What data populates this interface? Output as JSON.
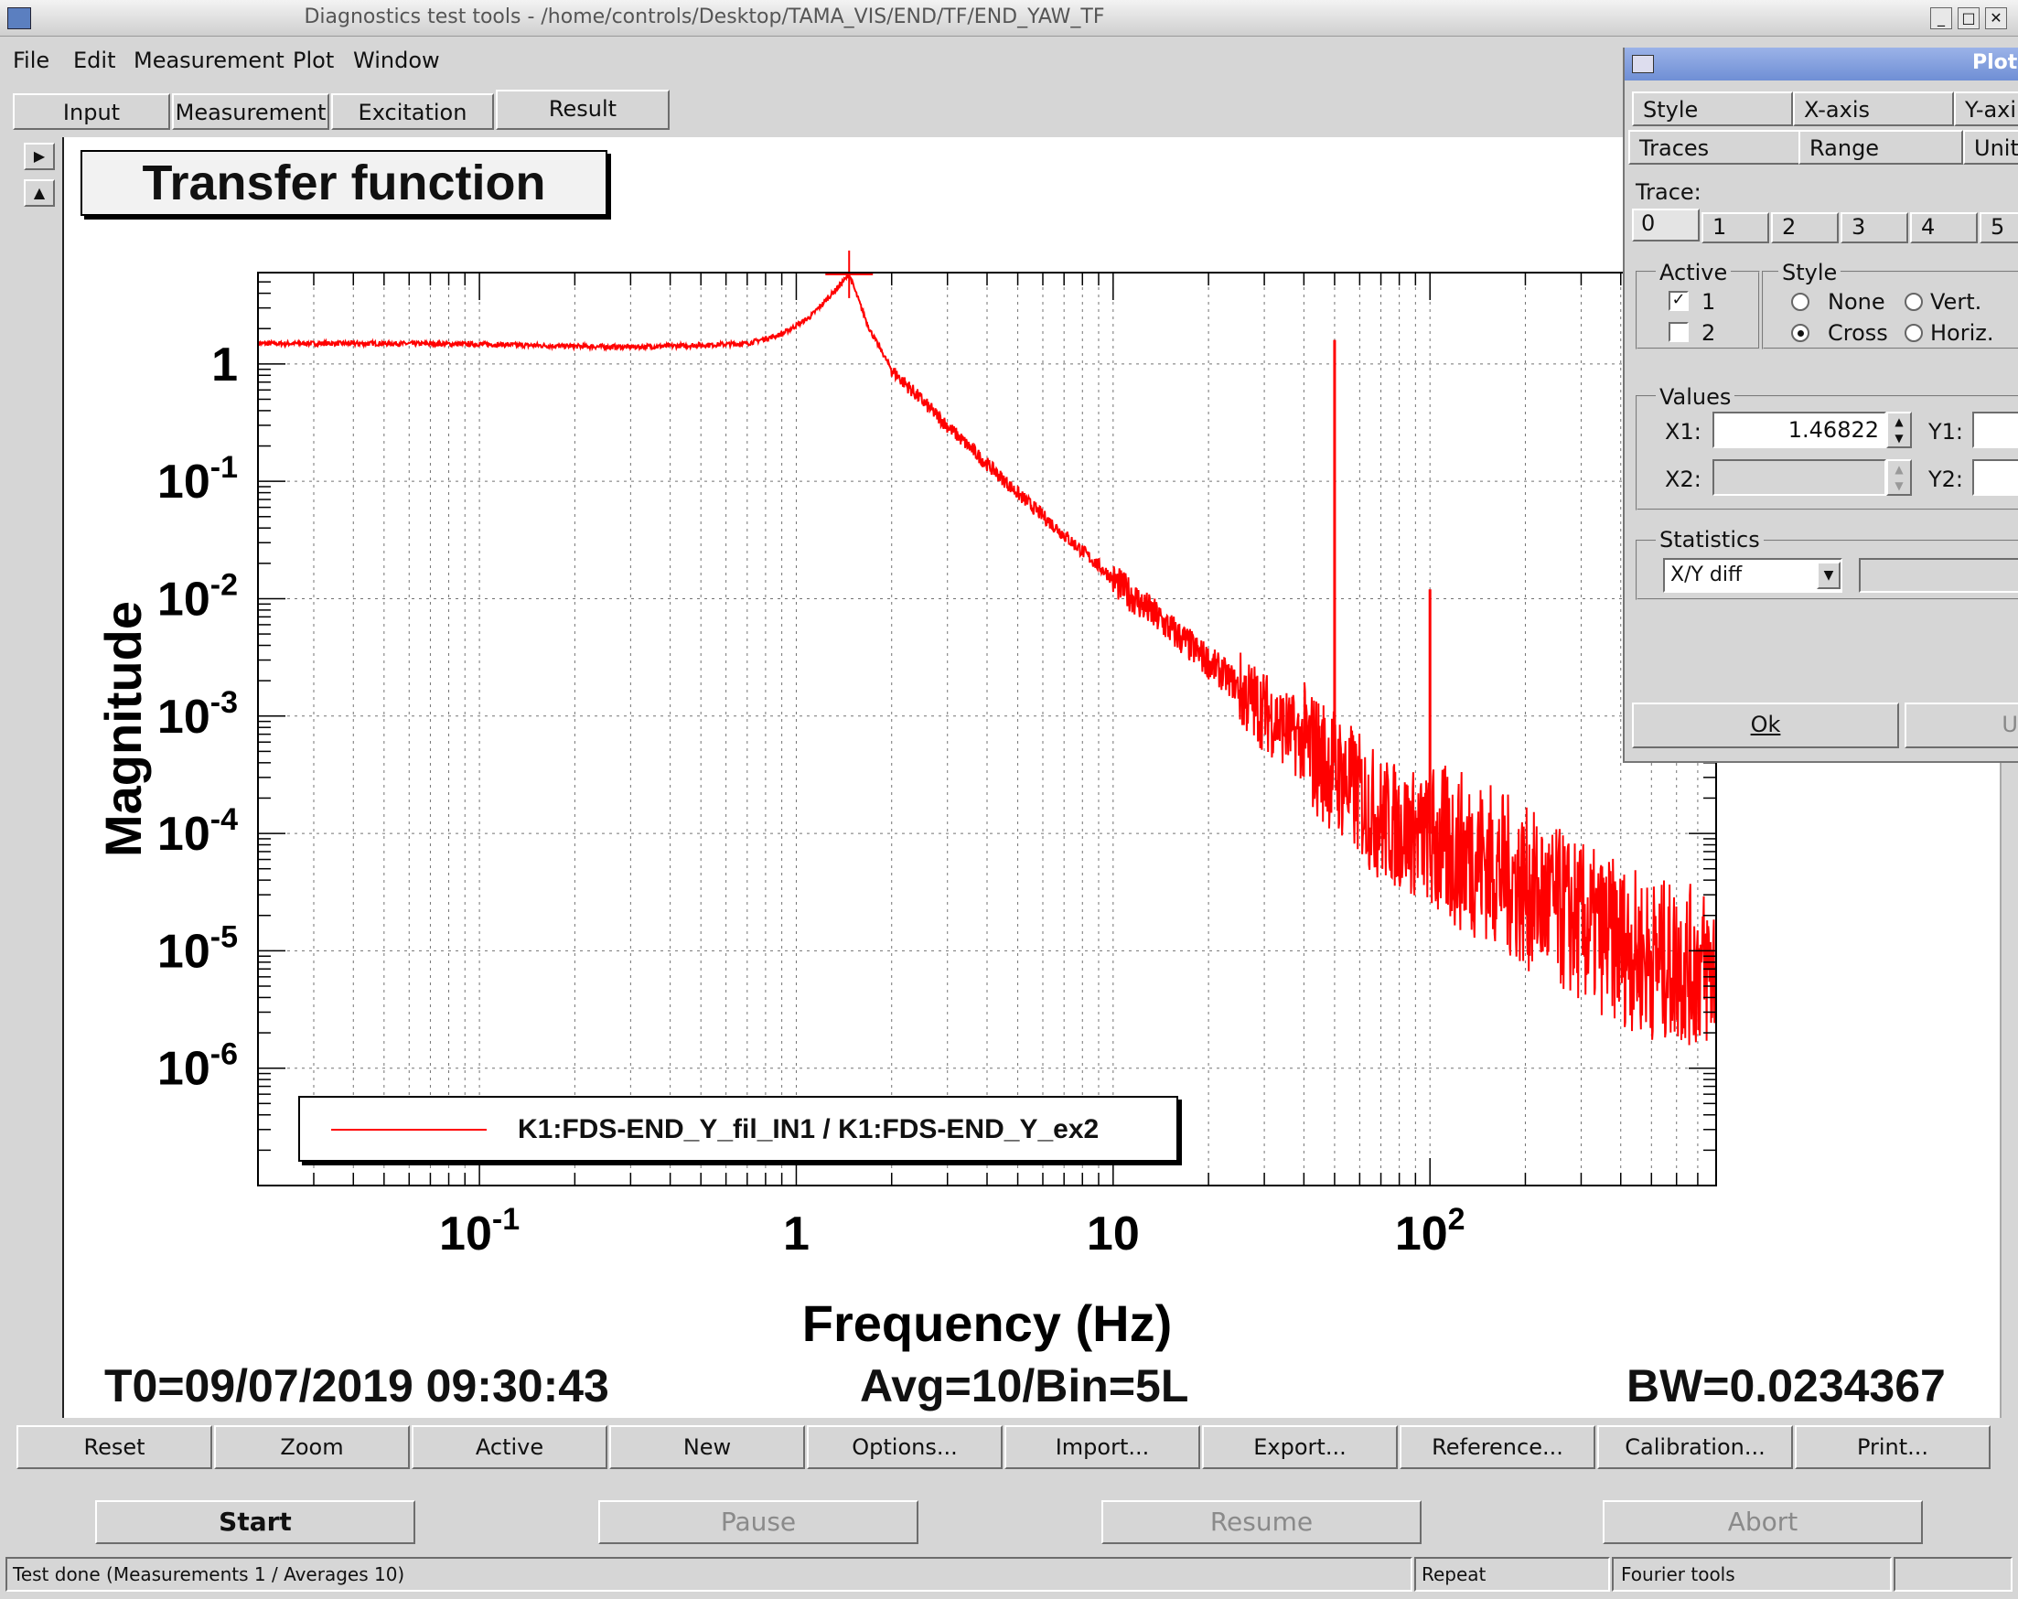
{
  "window": {
    "title": "Diagnostics test tools - /home/controls/Desktop/TAMA_VIS/END/TF/END_YAW_TF"
  },
  "menu": [
    "File",
    "Edit",
    "Measurement",
    "Plot",
    "Window"
  ],
  "tabs": [
    {
      "label": "Input"
    },
    {
      "label": "Measurement"
    },
    {
      "label": "Excitation"
    },
    {
      "label": "Result",
      "active": true
    }
  ],
  "plot": {
    "title": "Transfer function",
    "t0": "T0=09/07/2019 09:30:43",
    "avg": "Avg=10/Bin=5L",
    "bw": "BW=0.0234367",
    "legend": "K1:FDS-END_Y_fil_IN1 / K1:FDS-END_Y_ex2"
  },
  "chart_data": {
    "type": "line",
    "title": "",
    "xlabel": "Frequency (Hz)",
    "ylabel": "Magnitude",
    "xscale": "log",
    "yscale": "log",
    "xlim": [
      0.02,
      800
    ],
    "ylim": [
      1e-07,
      6
    ],
    "x_ticks": [
      "10^-1",
      "1",
      "10",
      "10^2"
    ],
    "y_ticks": [
      "1",
      "10^-1",
      "10^-2",
      "10^-3",
      "10^-4",
      "10^-5",
      "10^-6"
    ],
    "grid": true,
    "legend_position": "bottom-left",
    "cursor": {
      "x": 1.46822,
      "marker": "cross"
    },
    "series": [
      {
        "name": "K1:FDS-END_Y_fil_IN1 / K1:FDS-END_Y_ex2",
        "color": "#ff0000",
        "x": [
          0.02,
          0.05,
          0.1,
          0.2,
          0.3,
          0.5,
          0.7,
          0.9,
          1.1,
          1.3,
          1.46822,
          1.7,
          2,
          3,
          5,
          10,
          20,
          30,
          45,
          50,
          55,
          70,
          100,
          150,
          200,
          300,
          500,
          800
        ],
        "y": [
          1.5,
          1.5,
          1.48,
          1.42,
          1.4,
          1.45,
          1.5,
          1.8,
          2.5,
          4,
          5.8,
          2,
          0.9,
          0.3,
          0.08,
          0.015,
          0.003,
          0.0012,
          0.0005,
          0.0004,
          0.0003,
          0.00015,
          0.0001,
          7e-05,
          4e-05,
          2e-05,
          1e-05,
          8e-06
        ]
      }
    ],
    "peaks": [
      {
        "x": 50,
        "y": 1.6
      },
      {
        "x": 100,
        "y": 0.012
      }
    ]
  },
  "plot_buttons": [
    "Reset",
    "Zoom",
    "Active",
    "New",
    "Options...",
    "Import...",
    "Export...",
    "Reference...",
    "Calibration...",
    "Print..."
  ],
  "run_buttons": {
    "start": "Start",
    "pause": "Pause",
    "resume": "Resume",
    "abort": "Abort"
  },
  "status": {
    "text": "Test done (Measurements 1 / Averages 10)",
    "repeat": "Repeat",
    "fourier": "Fourier tools"
  },
  "options_panel": {
    "title": "Plot",
    "tabs_row1": [
      "Style",
      "X-axis",
      "Y-axi"
    ],
    "tabs_row2": [
      "Traces",
      "Range",
      "Units"
    ],
    "trace_label": "Trace:",
    "trace_tabs": [
      "0",
      "1",
      "2",
      "3",
      "4",
      "5"
    ],
    "active_title": "Active",
    "active_items": [
      {
        "label": "1",
        "checked": true
      },
      {
        "label": "2",
        "checked": false
      }
    ],
    "style_title": "Style",
    "style_none": "None",
    "style_vert": "Vert.",
    "style_cross": "Cross",
    "style_horiz": "Horiz.",
    "values_title": "Values",
    "x1_label": "X1:",
    "x1_value": "1.46822",
    "x2_label": "X2:",
    "y1_label": "Y1:",
    "y2_label": "Y2:",
    "statistics_title": "Statistics",
    "statistics_value": "X/Y diff",
    "ok_label": "Ok",
    "u_label": "U"
  }
}
